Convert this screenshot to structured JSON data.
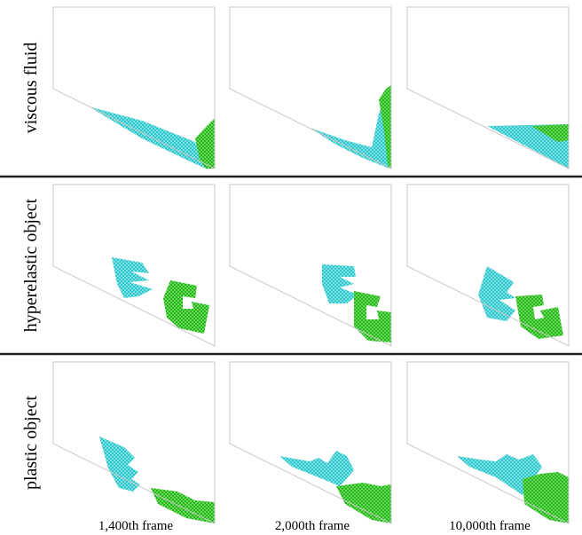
{
  "row_labels": [
    "viscous fluid",
    "hyperelastic object",
    "plastic object"
  ],
  "column_labels": [
    "1,400th frame",
    "2,000th frame",
    "10,000th frame"
  ]
}
